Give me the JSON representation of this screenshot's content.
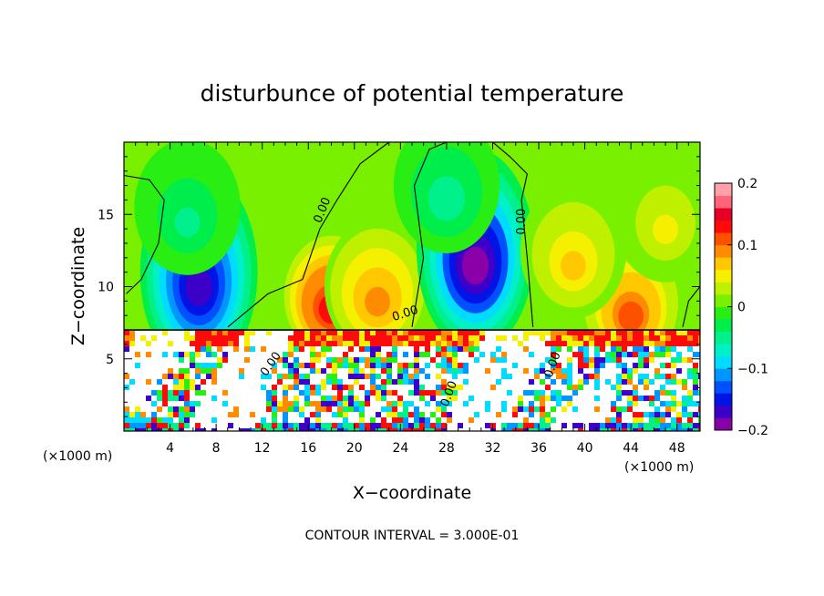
{
  "chart_data": {
    "type": "heatmap",
    "title": "disturbunce of potential temperature",
    "xlabel": "X−coordinate",
    "ylabel": "Z−coordinate",
    "x_unit_left": "(×1000 m)",
    "x_unit_right": "(×1000 m)",
    "xlim": [
      0,
      50
    ],
    "ylim": [
      0,
      20
    ],
    "xticks": [
      "4",
      "8",
      "12",
      "16",
      "20",
      "24",
      "28",
      "32",
      "36",
      "40",
      "44",
      "48"
    ],
    "xtick_values": [
      4,
      8,
      12,
      16,
      20,
      24,
      28,
      32,
      36,
      40,
      44,
      48
    ],
    "yticks": [
      "5",
      "10",
      "15"
    ],
    "ytick_values": [
      5,
      10,
      15
    ],
    "colorbar": {
      "min": -0.2,
      "max": 0.2,
      "tick_labels": [
        "0.2",
        "0.1",
        "0",
        "−0.1",
        "−0.2"
      ],
      "tick_values": [
        0.2,
        0.1,
        0,
        -0.1,
        -0.2
      ],
      "colors": [
        "#8a00a8",
        "#3c00c8",
        "#0014e6",
        "#0050ff",
        "#0096ff",
        "#00dcff",
        "#00f0c8",
        "#00f08c",
        "#00ee4c",
        "#28ee14",
        "#78f000",
        "#bef000",
        "#f5f000",
        "#ffc800",
        "#ff8c00",
        "#ff5000",
        "#ff0a0a",
        "#e60028",
        "#ff6478",
        "#ffa0aa"
      ]
    },
    "contour_labels": [
      "0.00",
      "0.00",
      "0.00",
      "0.00",
      "0.00",
      "0.00"
    ],
    "contour_interval_text": "CONTOUR INTERVAL = 3.000E-01",
    "anomalies": [
      {
        "x": 6.5,
        "z": 11.0,
        "value": -0.18
      },
      {
        "x": 5.5,
        "z": 15.5,
        "value": -0.04
      },
      {
        "x": 18.0,
        "z": 9.5,
        "value": 0.13
      },
      {
        "x": 22.0,
        "z": 10.0,
        "value": 0.09
      },
      {
        "x": 30.5,
        "z": 12.5,
        "value": -0.2
      },
      {
        "x": 28.0,
        "z": 17.0,
        "value": -0.05
      },
      {
        "x": 44.0,
        "z": 9.0,
        "value": 0.1
      },
      {
        "x": 39.0,
        "z": 12.5,
        "value": 0.06
      },
      {
        "x": 47.0,
        "z": 15.0,
        "value": 0.04
      }
    ],
    "lower_layer_top_z": 7.0,
    "grid": false,
    "legend": "right"
  }
}
